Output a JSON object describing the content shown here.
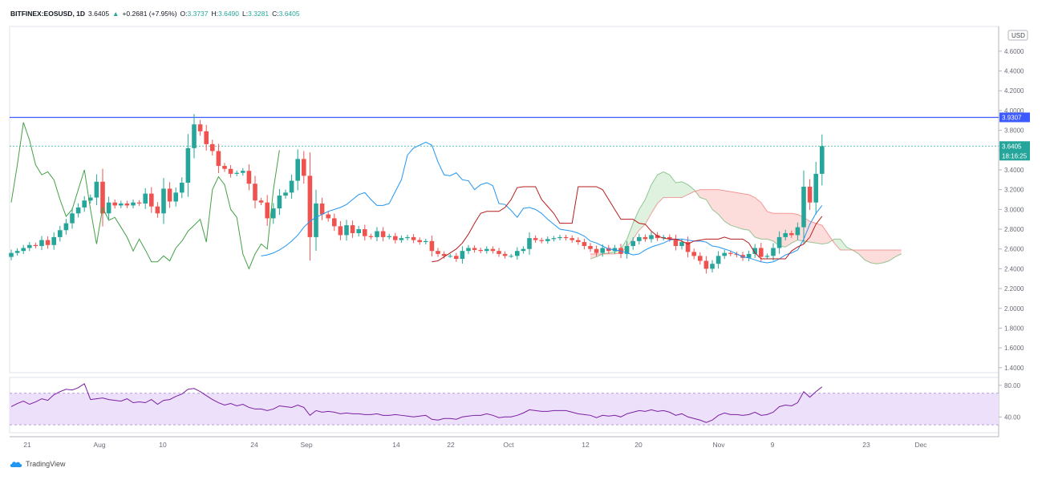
{
  "header": {
    "symbol": "BITFINEX:EOSUSD, 1D",
    "price": "3.6405",
    "arrow": "▲",
    "change": "+0.2681 (+7.95%)",
    "o_label": "O:",
    "o_value": "3.3737",
    "h_label": "H:",
    "h_value": "3.6490",
    "l_label": "L:",
    "l_value": "3.3281",
    "c_label": "C:",
    "c_value": "3.6405"
  },
  "footer": {
    "brand": "TradingView",
    "logo_icon": "tradingview-cloud-icon"
  },
  "colors": {
    "up": "#26a69a",
    "down": "#ef5350",
    "hline": "#3d5afe",
    "tenkan": "#2196f3",
    "kijun": "#b71c1c",
    "chikou": "#43a047",
    "spanA": "#7cb342",
    "rsi": "#7b1fa2",
    "rsi_band": "#ede0fa"
  },
  "chart_data": [
    {
      "type": "candlestick",
      "title": "BITFINEX:EOSUSD, 1D",
      "currency_label": "USD",
      "ylim": [
        1.35,
        4.85
      ],
      "y_ticks": [
        "4.6000",
        "4.4000",
        "4.2000",
        "4.0000",
        "3.8000",
        "3.6000",
        "3.4000",
        "3.2000",
        "3.0000",
        "2.8000",
        "2.6000",
        "2.4000",
        "2.2000",
        "2.0000",
        "1.8000",
        "1.6000",
        "1.4000"
      ],
      "x_labels": [
        "21",
        "Aug",
        "10",
        "24",
        "Sep",
        "14",
        "22",
        "Oct",
        "12",
        "20",
        "Nov",
        "9",
        "23",
        "Dec"
      ],
      "horizontal_line": {
        "value": 3.9307,
        "label": "3.9307"
      },
      "last_price": {
        "value": 3.6405,
        "label": "3.6405",
        "countdown": "18:16:25"
      },
      "series": [
        {
          "name": "Close",
          "values": [
            2.56,
            2.58,
            2.61,
            2.64,
            2.63,
            2.69,
            2.64,
            2.72,
            2.79,
            2.86,
            2.96,
            3.02,
            3.09,
            3.12,
            3.28,
            2.96,
            3.07,
            3.04,
            3.06,
            3.04,
            3.07,
            3.06,
            3.16,
            3.03,
            2.96,
            3.21,
            3.08,
            3.17,
            3.27,
            3.62,
            3.86,
            3.79,
            3.66,
            3.59,
            3.44,
            3.41,
            3.36,
            3.37,
            3.39,
            3.26,
            3.09,
            3.07,
            2.91,
            3.01,
            3.14,
            3.17,
            3.29,
            3.51,
            3.34,
            2.72,
            3.06,
            2.95,
            2.91,
            2.83,
            2.74,
            2.84,
            2.76,
            2.8,
            2.73,
            2.72,
            2.78,
            2.72,
            2.73,
            2.69,
            2.71,
            2.72,
            2.69,
            2.67,
            2.68,
            2.58,
            2.55,
            2.53,
            2.53,
            2.5,
            2.58,
            2.61,
            2.59,
            2.58,
            2.6,
            2.58,
            2.55,
            2.53,
            2.53,
            2.58,
            2.6,
            2.71,
            2.69,
            2.68,
            2.7,
            2.71,
            2.72,
            2.71,
            2.69,
            2.67,
            2.63,
            2.6,
            2.56,
            2.61,
            2.58,
            2.61,
            2.55,
            2.63,
            2.68,
            2.72,
            2.7,
            2.74,
            2.71,
            2.72,
            2.7,
            2.63,
            2.67,
            2.57,
            2.53,
            2.48,
            2.4,
            2.45,
            2.53,
            2.56,
            2.55,
            2.54,
            2.51,
            2.55,
            2.61,
            2.52,
            2.53,
            2.61,
            2.72,
            2.76,
            2.74,
            2.82,
            3.23,
            3.07,
            3.36,
            3.64
          ]
        },
        {
          "name": "Tenkan",
          "values": [
            2.53,
            2.54,
            2.56,
            2.59,
            2.63,
            2.68,
            2.74,
            2.82,
            2.88,
            2.92,
            2.95,
            2.98,
            3.0,
            3.02,
            3.05,
            3.1,
            3.15,
            3.17,
            3.1,
            3.04,
            3.04,
            3.06,
            3.18,
            3.3,
            3.55,
            3.62,
            3.65,
            3.68,
            3.65,
            3.48,
            3.35,
            3.34,
            3.37,
            3.3,
            3.29,
            3.2,
            3.25,
            3.27,
            3.24,
            3.06,
            3.05,
            2.99,
            2.92,
            3.01,
            3.02,
            3.0,
            2.96,
            2.9,
            2.85,
            2.8,
            2.79,
            2.78,
            2.76,
            2.73,
            2.68,
            2.66,
            2.63,
            2.6,
            2.59,
            2.58,
            2.56,
            2.54,
            2.55,
            2.59,
            2.62,
            2.64,
            2.66,
            2.69,
            2.7,
            2.7,
            2.69,
            2.68,
            2.68,
            2.67,
            2.63,
            2.62,
            2.6,
            2.58,
            2.55,
            2.52,
            2.51,
            2.49,
            2.47,
            2.46,
            2.47,
            2.5,
            2.54,
            2.56,
            2.59,
            2.7,
            2.85,
            2.96,
            3.04
          ]
        },
        {
          "name": "Kijun",
          "values": [
            2.47,
            2.48,
            2.52,
            2.56,
            2.6,
            2.66,
            2.75,
            2.86,
            2.96,
            2.98,
            2.98,
            2.98,
            3.02,
            3.1,
            3.22,
            3.23,
            3.23,
            3.23,
            3.1,
            3.03,
            2.96,
            2.86,
            2.86,
            2.86,
            3.23,
            3.23,
            3.23,
            3.23,
            3.2,
            3.1,
            3.0,
            2.9,
            2.9,
            2.9,
            2.86,
            2.85,
            2.78,
            2.73,
            2.71,
            2.7,
            2.7,
            2.68,
            2.65,
            2.68,
            2.69,
            2.7,
            2.7,
            2.7,
            2.72,
            2.7,
            2.7,
            2.7,
            2.66,
            2.56,
            2.5,
            2.5,
            2.5,
            2.5,
            2.5,
            2.58,
            2.62,
            2.65,
            2.72,
            2.85,
            2.93
          ]
        },
        {
          "name": "Chikou",
          "values": [
            3.07,
            3.45,
            3.88,
            3.7,
            3.45,
            3.35,
            3.38,
            3.3,
            3.1,
            2.93,
            3.0,
            3.2,
            3.4,
            3.0,
            2.65,
            3.02,
            2.89,
            2.92,
            2.82,
            2.72,
            2.58,
            2.7,
            2.59,
            2.47,
            2.47,
            2.53,
            2.48,
            2.61,
            2.68,
            2.78,
            2.84,
            2.9,
            2.67,
            3.2,
            3.33,
            3.25,
            3.0,
            2.92,
            2.55,
            2.4,
            2.55,
            2.65,
            2.6,
            3.2,
            3.6
          ]
        },
        {
          "name": "Senkou A",
          "values": [
            2.5,
            2.52,
            2.55,
            2.56,
            2.57,
            2.6,
            2.7,
            2.86,
            3.0,
            3.1,
            3.25,
            3.35,
            3.38,
            3.35,
            3.27,
            3.28,
            3.25,
            3.2,
            3.12,
            3.1,
            3.0,
            2.95,
            2.88,
            2.84,
            2.82,
            2.8,
            2.79,
            2.72,
            2.7,
            2.7,
            2.68,
            2.63,
            2.62,
            2.66,
            2.69,
            2.68,
            2.67,
            2.66,
            2.65,
            2.66,
            2.7,
            2.7,
            2.62,
            2.59,
            2.55,
            2.49,
            2.46,
            2.45,
            2.46,
            2.48,
            2.52,
            2.55
          ]
        },
        {
          "name": "Senkou B",
          "values": [
            2.55,
            2.55,
            2.55,
            2.55,
            2.55,
            2.56,
            2.62,
            2.7,
            2.79,
            2.85,
            2.96,
            3.06,
            3.12,
            3.12,
            3.12,
            3.12,
            3.15,
            3.18,
            3.2,
            3.2,
            3.2,
            3.2,
            3.19,
            3.18,
            3.17,
            3.16,
            3.15,
            3.12,
            3.07,
            2.98,
            2.96,
            2.96,
            2.96,
            2.96,
            2.95,
            2.92,
            2.88,
            2.86,
            2.84,
            2.75,
            2.66,
            2.59,
            2.59,
            2.59,
            2.59,
            2.59,
            2.59,
            2.59,
            2.59,
            2.59,
            2.59,
            2.59
          ]
        }
      ]
    },
    {
      "type": "line",
      "title": "RSI",
      "ylim": [
        20,
        90
      ],
      "y_ticks": [
        "80.00",
        "40.00"
      ],
      "band": [
        30,
        70
      ],
      "series": [
        {
          "name": "RSI",
          "values": [
            53,
            57,
            60,
            56,
            59,
            63,
            61,
            68,
            72,
            75,
            74,
            77,
            82,
            62,
            63,
            64,
            62,
            61,
            60,
            63,
            58,
            59,
            58,
            62,
            56,
            61,
            62,
            66,
            69,
            75,
            76,
            72,
            67,
            62,
            58,
            55,
            57,
            54,
            56,
            52,
            50,
            50,
            48,
            50,
            54,
            53,
            52,
            55,
            52,
            42,
            48,
            46,
            47,
            46,
            44,
            45,
            44,
            44,
            43,
            43,
            44,
            42,
            42,
            43,
            42,
            41,
            40,
            41,
            42,
            37,
            36,
            38,
            38,
            37,
            40,
            41,
            42,
            42,
            44,
            42,
            39,
            40,
            40,
            42,
            45,
            49,
            48,
            47,
            47,
            48,
            48,
            48,
            46,
            44,
            43,
            42,
            39,
            42,
            41,
            42,
            40,
            44,
            46,
            48,
            47,
            49,
            47,
            48,
            46,
            42,
            44,
            40,
            38,
            36,
            33,
            36,
            42,
            45,
            43,
            43,
            42,
            43,
            46,
            42,
            43,
            46,
            53,
            55,
            54,
            58,
            72,
            65,
            72,
            78
          ]
        }
      ]
    }
  ]
}
